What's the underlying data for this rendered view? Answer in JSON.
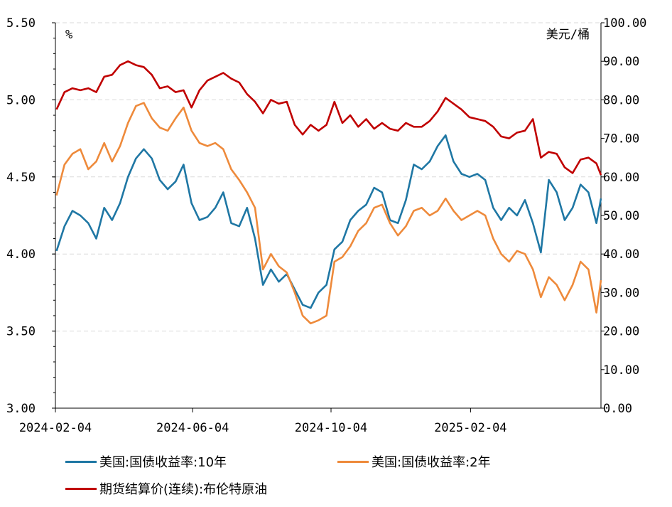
{
  "chart_data": {
    "type": "line",
    "x_ticks": [
      "2024-02-04",
      "2024-06-04",
      "2024-10-04",
      "2025-02-04"
    ],
    "x_range": [
      "2024-02-04",
      "2025-05-30"
    ],
    "y_left": {
      "unit": "%",
      "range": [
        3.0,
        5.5
      ],
      "ticks": [
        "3.00",
        "3.50",
        "4.00",
        "4.50",
        "5.00",
        "5.50"
      ]
    },
    "y_right": {
      "unit": "美元/桶",
      "range": [
        0,
        100
      ],
      "ticks": [
        "0.00",
        "10.00",
        "20.00",
        "30.00",
        "40.00",
        "50.00",
        "60.00",
        "70.00",
        "80.00",
        "90.00",
        "100.00"
      ]
    },
    "gridlines": "horizontal-dashed",
    "series": [
      {
        "name": "美国:国债收益率:10年",
        "axis": "left",
        "color": "#1f77a4",
        "points": [
          [
            "2024-02-05",
            4.02
          ],
          [
            "2024-02-12",
            4.18
          ],
          [
            "2024-02-19",
            4.28
          ],
          [
            "2024-02-26",
            4.25
          ],
          [
            "2024-03-04",
            4.2
          ],
          [
            "2024-03-11",
            4.1
          ],
          [
            "2024-03-18",
            4.3
          ],
          [
            "2024-03-25",
            4.22
          ],
          [
            "2024-04-01",
            4.33
          ],
          [
            "2024-04-08",
            4.5
          ],
          [
            "2024-04-15",
            4.62
          ],
          [
            "2024-04-22",
            4.68
          ],
          [
            "2024-04-29",
            4.62
          ],
          [
            "2024-05-06",
            4.48
          ],
          [
            "2024-05-13",
            4.42
          ],
          [
            "2024-05-20",
            4.47
          ],
          [
            "2024-05-27",
            4.58
          ],
          [
            "2024-06-03",
            4.33
          ],
          [
            "2024-06-10",
            4.22
          ],
          [
            "2024-06-17",
            4.24
          ],
          [
            "2024-06-24",
            4.3
          ],
          [
            "2024-07-01",
            4.4
          ],
          [
            "2024-07-08",
            4.2
          ],
          [
            "2024-07-15",
            4.18
          ],
          [
            "2024-07-22",
            4.3
          ],
          [
            "2024-07-29",
            4.1
          ],
          [
            "2024-08-05",
            3.8
          ],
          [
            "2024-08-12",
            3.9
          ],
          [
            "2024-08-19",
            3.82
          ],
          [
            "2024-08-26",
            3.87
          ],
          [
            "2024-09-02",
            3.77
          ],
          [
            "2024-09-09",
            3.67
          ],
          [
            "2024-09-16",
            3.65
          ],
          [
            "2024-09-23",
            3.75
          ],
          [
            "2024-09-30",
            3.8
          ],
          [
            "2024-10-07",
            4.03
          ],
          [
            "2024-10-14",
            4.08
          ],
          [
            "2024-10-21",
            4.22
          ],
          [
            "2024-10-28",
            4.28
          ],
          [
            "2024-11-04",
            4.32
          ],
          [
            "2024-11-11",
            4.43
          ],
          [
            "2024-11-18",
            4.4
          ],
          [
            "2024-11-25",
            4.22
          ],
          [
            "2024-12-02",
            4.2
          ],
          [
            "2024-12-09",
            4.35
          ],
          [
            "2024-12-16",
            4.58
          ],
          [
            "2024-12-23",
            4.55
          ],
          [
            "2024-12-30",
            4.6
          ],
          [
            "2025-01-06",
            4.7
          ],
          [
            "2025-01-13",
            4.77
          ],
          [
            "2025-01-20",
            4.6
          ],
          [
            "2025-01-27",
            4.52
          ],
          [
            "2025-02-03",
            4.5
          ],
          [
            "2025-02-10",
            4.52
          ],
          [
            "2025-02-17",
            4.48
          ],
          [
            "2025-02-24",
            4.3
          ],
          [
            "2025-03-03",
            4.22
          ],
          [
            "2025-03-10",
            4.3
          ],
          [
            "2025-03-17",
            4.25
          ],
          [
            "2025-03-24",
            4.35
          ],
          [
            "2025-03-31",
            4.2
          ],
          [
            "2025-04-07",
            4.01
          ],
          [
            "2025-04-14",
            4.48
          ],
          [
            "2025-04-21",
            4.4
          ],
          [
            "2025-04-28",
            4.22
          ],
          [
            "2025-05-05",
            4.3
          ],
          [
            "2025-05-12",
            4.45
          ],
          [
            "2025-05-19",
            4.4
          ],
          [
            "2025-05-26",
            4.2
          ],
          [
            "2025-05-30",
            4.36
          ]
        ]
      },
      {
        "name": "美国:国债收益率:2年",
        "axis": "left",
        "color": "#ee8a3b",
        "points": [
          [
            "2024-02-05",
            4.38
          ],
          [
            "2024-02-12",
            4.58
          ],
          [
            "2024-02-19",
            4.65
          ],
          [
            "2024-02-26",
            4.68
          ],
          [
            "2024-03-04",
            4.55
          ],
          [
            "2024-03-11",
            4.6
          ],
          [
            "2024-03-18",
            4.72
          ],
          [
            "2024-03-25",
            4.6
          ],
          [
            "2024-04-01",
            4.7
          ],
          [
            "2024-04-08",
            4.85
          ],
          [
            "2024-04-15",
            4.96
          ],
          [
            "2024-04-22",
            4.98
          ],
          [
            "2024-04-29",
            4.88
          ],
          [
            "2024-05-06",
            4.82
          ],
          [
            "2024-05-13",
            4.8
          ],
          [
            "2024-05-20",
            4.88
          ],
          [
            "2024-05-27",
            4.95
          ],
          [
            "2024-06-03",
            4.8
          ],
          [
            "2024-06-10",
            4.72
          ],
          [
            "2024-06-17",
            4.7
          ],
          [
            "2024-06-24",
            4.72
          ],
          [
            "2024-07-01",
            4.68
          ],
          [
            "2024-07-08",
            4.55
          ],
          [
            "2024-07-15",
            4.48
          ],
          [
            "2024-07-22",
            4.4
          ],
          [
            "2024-07-29",
            4.3
          ],
          [
            "2024-08-05",
            3.9
          ],
          [
            "2024-08-12",
            4.0
          ],
          [
            "2024-08-19",
            3.92
          ],
          [
            "2024-08-26",
            3.88
          ],
          [
            "2024-09-02",
            3.75
          ],
          [
            "2024-09-09",
            3.6
          ],
          [
            "2024-09-16",
            3.55
          ],
          [
            "2024-09-23",
            3.57
          ],
          [
            "2024-09-30",
            3.6
          ],
          [
            "2024-10-07",
            3.95
          ],
          [
            "2024-10-14",
            3.98
          ],
          [
            "2024-10-21",
            4.05
          ],
          [
            "2024-10-28",
            4.15
          ],
          [
            "2024-11-04",
            4.2
          ],
          [
            "2024-11-11",
            4.3
          ],
          [
            "2024-11-18",
            4.32
          ],
          [
            "2024-11-25",
            4.2
          ],
          [
            "2024-12-02",
            4.12
          ],
          [
            "2024-12-09",
            4.18
          ],
          [
            "2024-12-16",
            4.28
          ],
          [
            "2024-12-23",
            4.3
          ],
          [
            "2024-12-30",
            4.25
          ],
          [
            "2025-01-06",
            4.28
          ],
          [
            "2025-01-13",
            4.36
          ],
          [
            "2025-01-20",
            4.28
          ],
          [
            "2025-01-27",
            4.22
          ],
          [
            "2025-02-03",
            4.25
          ],
          [
            "2025-02-10",
            4.28
          ],
          [
            "2025-02-17",
            4.25
          ],
          [
            "2025-02-24",
            4.1
          ],
          [
            "2025-03-03",
            4.0
          ],
          [
            "2025-03-10",
            3.95
          ],
          [
            "2025-03-17",
            4.02
          ],
          [
            "2025-03-24",
            4.0
          ],
          [
            "2025-03-31",
            3.9
          ],
          [
            "2025-04-07",
            3.72
          ],
          [
            "2025-04-14",
            3.85
          ],
          [
            "2025-04-21",
            3.8
          ],
          [
            "2025-04-28",
            3.7
          ],
          [
            "2025-05-05",
            3.8
          ],
          [
            "2025-05-12",
            3.95
          ],
          [
            "2025-05-19",
            3.9
          ],
          [
            "2025-05-26",
            3.62
          ],
          [
            "2025-05-30",
            3.83
          ]
        ]
      },
      {
        "name": "期货结算价(连续):布伦特原油",
        "axis": "right",
        "color": "#c00000",
        "points": [
          [
            "2024-02-05",
            77.5
          ],
          [
            "2024-02-12",
            82.0
          ],
          [
            "2024-02-19",
            83.0
          ],
          [
            "2024-02-26",
            82.5
          ],
          [
            "2024-03-04",
            83.0
          ],
          [
            "2024-03-11",
            82.0
          ],
          [
            "2024-03-18",
            86.0
          ],
          [
            "2024-03-25",
            86.5
          ],
          [
            "2024-04-01",
            89.0
          ],
          [
            "2024-04-08",
            90.0
          ],
          [
            "2024-04-15",
            89.0
          ],
          [
            "2024-04-22",
            88.5
          ],
          [
            "2024-04-29",
            86.5
          ],
          [
            "2024-05-06",
            83.0
          ],
          [
            "2024-05-13",
            83.5
          ],
          [
            "2024-05-20",
            82.0
          ],
          [
            "2024-05-27",
            82.5
          ],
          [
            "2024-06-03",
            78.0
          ],
          [
            "2024-06-10",
            82.5
          ],
          [
            "2024-06-17",
            85.0
          ],
          [
            "2024-06-24",
            86.0
          ],
          [
            "2024-07-01",
            87.0
          ],
          [
            "2024-07-08",
            85.5
          ],
          [
            "2024-07-15",
            84.5
          ],
          [
            "2024-07-22",
            81.5
          ],
          [
            "2024-07-29",
            79.5
          ],
          [
            "2024-08-05",
            76.5
          ],
          [
            "2024-08-12",
            80.0
          ],
          [
            "2024-08-19",
            79.0
          ],
          [
            "2024-08-26",
            79.5
          ],
          [
            "2024-09-02",
            73.5
          ],
          [
            "2024-09-09",
            71.0
          ],
          [
            "2024-09-16",
            73.5
          ],
          [
            "2024-09-23",
            72.0
          ],
          [
            "2024-09-30",
            73.5
          ],
          [
            "2024-10-07",
            79.5
          ],
          [
            "2024-10-14",
            74.0
          ],
          [
            "2024-10-21",
            76.0
          ],
          [
            "2024-10-28",
            73.0
          ],
          [
            "2024-11-04",
            75.0
          ],
          [
            "2024-11-11",
            72.5
          ],
          [
            "2024-11-18",
            74.0
          ],
          [
            "2024-11-25",
            72.5
          ],
          [
            "2024-12-02",
            72.0
          ],
          [
            "2024-12-09",
            74.0
          ],
          [
            "2024-12-16",
            73.0
          ],
          [
            "2024-12-23",
            73.0
          ],
          [
            "2024-12-30",
            74.5
          ],
          [
            "2025-01-06",
            77.0
          ],
          [
            "2025-01-13",
            80.5
          ],
          [
            "2025-01-20",
            79.0
          ],
          [
            "2025-01-27",
            77.5
          ],
          [
            "2025-02-03",
            75.5
          ],
          [
            "2025-02-10",
            75.0
          ],
          [
            "2025-02-17",
            74.5
          ],
          [
            "2025-02-24",
            73.0
          ],
          [
            "2025-03-03",
            70.5
          ],
          [
            "2025-03-10",
            70.0
          ],
          [
            "2025-03-17",
            71.5
          ],
          [
            "2025-03-24",
            72.0
          ],
          [
            "2025-03-31",
            75.0
          ],
          [
            "2025-04-07",
            65.0
          ],
          [
            "2025-04-14",
            66.5
          ],
          [
            "2025-04-21",
            66.0
          ],
          [
            "2025-04-28",
            62.5
          ],
          [
            "2025-05-05",
            61.0
          ],
          [
            "2025-05-12",
            64.5
          ],
          [
            "2025-05-19",
            65.0
          ],
          [
            "2025-05-26",
            63.5
          ],
          [
            "2025-05-30",
            60.5
          ]
        ]
      }
    ]
  }
}
